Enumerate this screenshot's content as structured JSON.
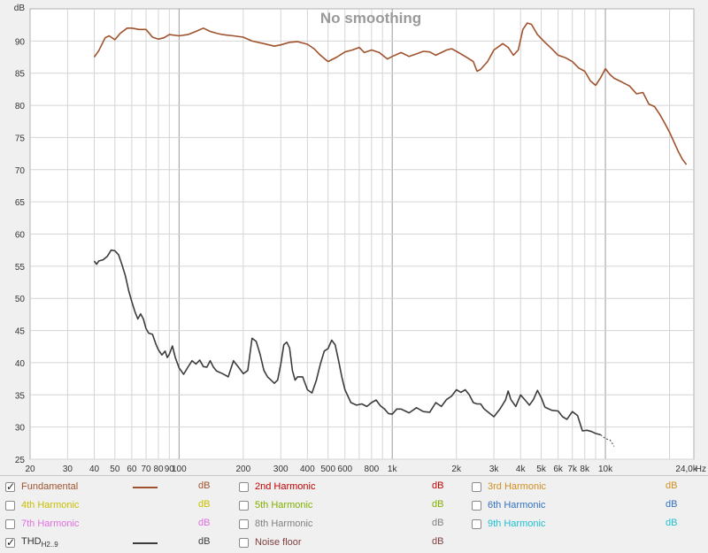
{
  "chart_data": {
    "type": "line",
    "title": "No smoothing",
    "ylabel": "dB",
    "xlabel": "Hz",
    "x_scale": "log",
    "xlim": [
      20,
      26000
    ],
    "ylim": [
      25,
      95
    ],
    "grid": true,
    "y_ticks": [
      25,
      30,
      35,
      40,
      45,
      50,
      55,
      60,
      65,
      70,
      75,
      80,
      85,
      90
    ],
    "x_ticks": [
      {
        "v": 20,
        "label": "20"
      },
      {
        "v": 30,
        "label": "30"
      },
      {
        "v": 40,
        "label": "40"
      },
      {
        "v": 50,
        "label": "50"
      },
      {
        "v": 60,
        "label": "60"
      },
      {
        "v": 70,
        "label": "70"
      },
      {
        "v": 80,
        "label": "80"
      },
      {
        "v": 90,
        "label": "90"
      },
      {
        "v": 100,
        "label": "100"
      },
      {
        "v": 200,
        "label": "200"
      },
      {
        "v": 300,
        "label": "300"
      },
      {
        "v": 400,
        "label": "400"
      },
      {
        "v": 500,
        "label": "500"
      },
      {
        "v": 600,
        "label": "600"
      },
      {
        "v": 800,
        "label": "800"
      },
      {
        "v": 1000,
        "label": "1k"
      },
      {
        "v": 2000,
        "label": "2k"
      },
      {
        "v": 3000,
        "label": "3k"
      },
      {
        "v": 4000,
        "label": "4k"
      },
      {
        "v": 5000,
        "label": "5k"
      },
      {
        "v": 6000,
        "label": "6k"
      },
      {
        "v": 7000,
        "label": "7k"
      },
      {
        "v": 8000,
        "label": "8k"
      },
      {
        "v": 10000,
        "label": "10k"
      },
      {
        "v": 24000,
        "label": "24,0k"
      }
    ],
    "series": [
      {
        "name": "Fundamental",
        "color": "#a0522d",
        "points": [
          [
            40,
            87.5
          ],
          [
            42,
            88.5
          ],
          [
            45,
            90.5
          ],
          [
            47,
            90.8
          ],
          [
            50,
            90.2
          ],
          [
            53,
            91.2
          ],
          [
            57,
            92.0
          ],
          [
            60,
            92.0
          ],
          [
            65,
            91.8
          ],
          [
            70,
            91.8
          ],
          [
            75,
            90.6
          ],
          [
            80,
            90.3
          ],
          [
            85,
            90.5
          ],
          [
            90,
            91.0
          ],
          [
            100,
            90.8
          ],
          [
            110,
            91.0
          ],
          [
            120,
            91.5
          ],
          [
            130,
            92.0
          ],
          [
            140,
            91.5
          ],
          [
            150,
            91.2
          ],
          [
            160,
            91.0
          ],
          [
            180,
            90.8
          ],
          [
            200,
            90.6
          ],
          [
            220,
            90.0
          ],
          [
            250,
            89.6
          ],
          [
            280,
            89.2
          ],
          [
            300,
            89.4
          ],
          [
            330,
            89.8
          ],
          [
            360,
            89.9
          ],
          [
            400,
            89.5
          ],
          [
            430,
            88.8
          ],
          [
            460,
            87.8
          ],
          [
            500,
            86.8
          ],
          [
            550,
            87.5
          ],
          [
            600,
            88.3
          ],
          [
            650,
            88.6
          ],
          [
            700,
            89.0
          ],
          [
            740,
            88.2
          ],
          [
            800,
            88.6
          ],
          [
            870,
            88.2
          ],
          [
            950,
            87.2
          ],
          [
            1000,
            87.6
          ],
          [
            1100,
            88.2
          ],
          [
            1200,
            87.6
          ],
          [
            1300,
            88.0
          ],
          [
            1400,
            88.4
          ],
          [
            1500,
            88.3
          ],
          [
            1600,
            87.8
          ],
          [
            1700,
            88.2
          ],
          [
            1800,
            88.6
          ],
          [
            1900,
            88.8
          ],
          [
            2000,
            88.4
          ],
          [
            2200,
            87.6
          ],
          [
            2400,
            86.8
          ],
          [
            2500,
            85.3
          ],
          [
            2600,
            85.6
          ],
          [
            2800,
            86.8
          ],
          [
            3000,
            88.6
          ],
          [
            3300,
            89.6
          ],
          [
            3500,
            89.0
          ],
          [
            3700,
            87.8
          ],
          [
            3900,
            88.6
          ],
          [
            4100,
            91.8
          ],
          [
            4300,
            92.8
          ],
          [
            4500,
            92.6
          ],
          [
            4800,
            91.0
          ],
          [
            5200,
            89.8
          ],
          [
            5600,
            88.8
          ],
          [
            6000,
            87.8
          ],
          [
            6500,
            87.4
          ],
          [
            7000,
            86.8
          ],
          [
            7500,
            85.8
          ],
          [
            8000,
            85.3
          ],
          [
            8500,
            83.8
          ],
          [
            9000,
            83.1
          ],
          [
            9500,
            84.3
          ],
          [
            10000,
            85.7
          ],
          [
            10500,
            84.8
          ],
          [
            11000,
            84.2
          ],
          [
            12000,
            83.6
          ],
          [
            13000,
            83.0
          ],
          [
            14000,
            81.8
          ],
          [
            15000,
            82.0
          ],
          [
            16000,
            80.2
          ],
          [
            17000,
            79.8
          ],
          [
            18000,
            78.6
          ],
          [
            19000,
            77.2
          ],
          [
            20000,
            75.8
          ],
          [
            22000,
            72.8
          ],
          [
            23000,
            71.6
          ],
          [
            24000,
            70.8
          ]
        ]
      },
      {
        "name": "THD H2..9",
        "color": "#3c3c3c",
        "points": [
          [
            40,
            55.8
          ],
          [
            41,
            55.3
          ],
          [
            42,
            55.8
          ],
          [
            44,
            56.0
          ],
          [
            46,
            56.5
          ],
          [
            48,
            57.5
          ],
          [
            50,
            57.4
          ],
          [
            52,
            56.8
          ],
          [
            54,
            55.2
          ],
          [
            56,
            53.5
          ],
          [
            58,
            51.2
          ],
          [
            60,
            49.5
          ],
          [
            62,
            48.0
          ],
          [
            64,
            46.8
          ],
          [
            66,
            47.6
          ],
          [
            68,
            46.8
          ],
          [
            70,
            45.3
          ],
          [
            72,
            44.6
          ],
          [
            75,
            44.4
          ],
          [
            78,
            42.8
          ],
          [
            80,
            42.0
          ],
          [
            83,
            41.2
          ],
          [
            86,
            41.8
          ],
          [
            88,
            40.8
          ],
          [
            90,
            41.3
          ],
          [
            93,
            42.6
          ],
          [
            96,
            40.8
          ],
          [
            100,
            39.2
          ],
          [
            105,
            38.2
          ],
          [
            110,
            39.3
          ],
          [
            115,
            40.3
          ],
          [
            120,
            39.8
          ],
          [
            125,
            40.4
          ],
          [
            130,
            39.4
          ],
          [
            135,
            39.3
          ],
          [
            140,
            40.3
          ],
          [
            145,
            39.3
          ],
          [
            150,
            38.7
          ],
          [
            160,
            38.3
          ],
          [
            170,
            37.8
          ],
          [
            180,
            40.3
          ],
          [
            190,
            39.3
          ],
          [
            200,
            38.3
          ],
          [
            210,
            38.8
          ],
          [
            220,
            43.8
          ],
          [
            230,
            43.3
          ],
          [
            240,
            41.3
          ],
          [
            250,
            38.8
          ],
          [
            260,
            37.8
          ],
          [
            270,
            37.3
          ],
          [
            280,
            36.8
          ],
          [
            290,
            37.3
          ],
          [
            300,
            39.8
          ],
          [
            310,
            42.8
          ],
          [
            320,
            43.2
          ],
          [
            330,
            42.3
          ],
          [
            340,
            38.8
          ],
          [
            350,
            37.3
          ],
          [
            360,
            37.8
          ],
          [
            380,
            37.8
          ],
          [
            400,
            35.8
          ],
          [
            420,
            35.3
          ],
          [
            440,
            37.2
          ],
          [
            460,
            39.8
          ],
          [
            480,
            41.8
          ],
          [
            500,
            42.2
          ],
          [
            520,
            43.5
          ],
          [
            540,
            42.8
          ],
          [
            560,
            40.3
          ],
          [
            580,
            37.8
          ],
          [
            600,
            35.8
          ],
          [
            640,
            33.8
          ],
          [
            680,
            33.4
          ],
          [
            720,
            33.6
          ],
          [
            760,
            33.2
          ],
          [
            800,
            33.8
          ],
          [
            840,
            34.2
          ],
          [
            880,
            33.3
          ],
          [
            920,
            32.8
          ],
          [
            960,
            32.1
          ],
          [
            1000,
            32.0
          ],
          [
            1050,
            32.8
          ],
          [
            1100,
            32.8
          ],
          [
            1150,
            32.5
          ],
          [
            1200,
            32.2
          ],
          [
            1300,
            33.0
          ],
          [
            1400,
            32.4
          ],
          [
            1500,
            32.3
          ],
          [
            1600,
            33.8
          ],
          [
            1700,
            33.2
          ],
          [
            1800,
            34.3
          ],
          [
            1900,
            34.8
          ],
          [
            2000,
            35.8
          ],
          [
            2100,
            35.4
          ],
          [
            2200,
            35.8
          ],
          [
            2300,
            35.0
          ],
          [
            2400,
            33.8
          ],
          [
            2500,
            33.6
          ],
          [
            2600,
            33.6
          ],
          [
            2700,
            32.8
          ],
          [
            2800,
            32.4
          ],
          [
            3000,
            31.6
          ],
          [
            3200,
            32.8
          ],
          [
            3400,
            34.2
          ],
          [
            3500,
            35.6
          ],
          [
            3600,
            34.3
          ],
          [
            3800,
            33.2
          ],
          [
            4000,
            35.0
          ],
          [
            4200,
            34.2
          ],
          [
            4400,
            33.4
          ],
          [
            4600,
            34.3
          ],
          [
            4800,
            35.7
          ],
          [
            5000,
            34.6
          ],
          [
            5200,
            33.1
          ],
          [
            5600,
            32.6
          ],
          [
            6000,
            32.5
          ],
          [
            6300,
            31.6
          ],
          [
            6600,
            31.2
          ],
          [
            7000,
            32.4
          ],
          [
            7400,
            31.8
          ],
          [
            7800,
            29.4
          ],
          [
            8200,
            29.5
          ],
          [
            8600,
            29.3
          ],
          [
            9000,
            29.0
          ],
          [
            9500,
            28.8
          ]
        ]
      },
      {
        "name": "THD H2..9 (dashed tail)",
        "color": "#3c3c3c",
        "dashed": true,
        "points": [
          [
            9500,
            28.8
          ],
          [
            10000,
            28.2
          ],
          [
            10500,
            28.0
          ],
          [
            11000,
            27.0
          ]
        ]
      }
    ]
  },
  "legend": {
    "unit": "dB",
    "items": [
      {
        "label": "Fundamental",
        "color": "#a0522d",
        "checked": true,
        "swatch": true
      },
      {
        "label": "2nd Harmonic",
        "color": "#c00000",
        "checked": false,
        "swatch": false
      },
      {
        "label": "3rd Harmonic",
        "color": "#d09020",
        "checked": false,
        "swatch": false
      },
      {
        "label": "4th Harmonic",
        "color": "#c8c000",
        "checked": false,
        "swatch": false
      },
      {
        "label": "5th Harmonic",
        "color": "#80b000",
        "checked": false,
        "swatch": false
      },
      {
        "label": "6th Harmonic",
        "color": "#3070c0",
        "checked": false,
        "swatch": false
      },
      {
        "label": "7th Harmonic",
        "color": "#e070e0",
        "checked": false,
        "swatch": false
      },
      {
        "label": "8th Harmonic",
        "color": "#808080",
        "checked": false,
        "swatch": false
      },
      {
        "label": "9th Harmonic",
        "color": "#20c0d0",
        "checked": false,
        "swatch": false
      },
      {
        "label": "THD",
        "sub": "H2..9",
        "color": "#3c3c3c",
        "checked": true,
        "swatch": true
      },
      {
        "label": "Noise floor",
        "color": "#804040",
        "checked": false,
        "swatch": false
      }
    ]
  }
}
